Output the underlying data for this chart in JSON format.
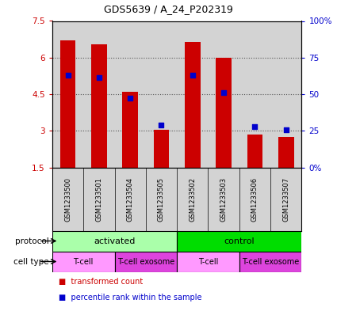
{
  "title": "GDS5639 / A_24_P202319",
  "samples": [
    "GSM1233500",
    "GSM1233501",
    "GSM1233504",
    "GSM1233505",
    "GSM1233502",
    "GSM1233503",
    "GSM1233506",
    "GSM1233507"
  ],
  "transformed_counts": [
    6.7,
    6.55,
    4.6,
    3.05,
    6.65,
    5.98,
    2.85,
    2.75
  ],
  "percentile_ranks": [
    5.28,
    5.18,
    4.35,
    3.25,
    5.28,
    4.58,
    3.18,
    3.05
  ],
  "bar_bottom": 1.5,
  "ylim_left": [
    1.5,
    7.5
  ],
  "ylim_right": [
    0,
    100
  ],
  "yticks_left": [
    1.5,
    3.0,
    4.5,
    6.0,
    7.5
  ],
  "yticks_right": [
    0,
    25,
    50,
    75,
    100
  ],
  "ytick_labels_left": [
    "1.5",
    "3",
    "4.5",
    "6",
    "7.5"
  ],
  "ytick_labels_right": [
    "0%",
    "25",
    "50",
    "75",
    "100%"
  ],
  "bar_color": "#CC0000",
  "dot_color": "#0000CC",
  "bar_width": 0.5,
  "dot_size": 25,
  "protocol_groups": [
    {
      "label": "activated",
      "start": 0,
      "end": 4,
      "color": "#AAFFAA"
    },
    {
      "label": "control",
      "start": 4,
      "end": 8,
      "color": "#00DD00"
    }
  ],
  "cell_type_groups": [
    {
      "label": "T-cell",
      "start": 0,
      "end": 2,
      "color": "#FF99FF"
    },
    {
      "label": "T-cell exosome",
      "start": 2,
      "end": 4,
      "color": "#DD44DD"
    },
    {
      "label": "T-cell",
      "start": 4,
      "end": 6,
      "color": "#FF99FF"
    },
    {
      "label": "T-cell exosome",
      "start": 6,
      "end": 8,
      "color": "#DD44DD"
    }
  ],
  "legend_items": [
    {
      "label": "transformed count",
      "color": "#CC0000"
    },
    {
      "label": "percentile rank within the sample",
      "color": "#0000CC"
    }
  ],
  "axis_color_left": "#CC0000",
  "axis_color_right": "#0000CC",
  "sample_bg": "#D3D3D3",
  "plot_bg": "#D3D3D3",
  "white_bg": "#FFFFFF"
}
